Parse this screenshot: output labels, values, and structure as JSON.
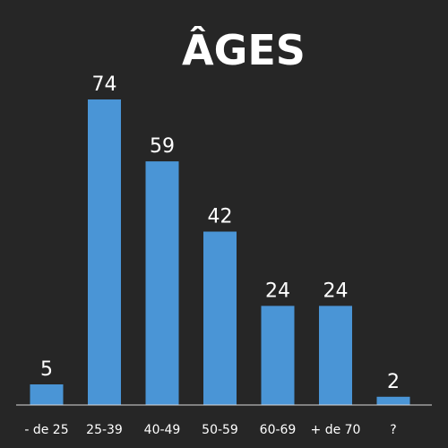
{
  "chart_data": {
    "type": "bar",
    "title": "ÂGES",
    "categories": [
      "- de 25",
      "25-39",
      "40-49",
      "50-59",
      "60-69",
      "+ de 70",
      "?"
    ],
    "values": [
      5,
      74,
      59,
      42,
      24,
      24,
      2
    ],
    "xlabel": "",
    "ylabel": "",
    "ylim": [
      0,
      74
    ],
    "grid": false,
    "colors": {
      "background": "#262626",
      "bar": "#4a95d6",
      "text": "#ffffff",
      "axis": "#d9d9d9"
    }
  }
}
